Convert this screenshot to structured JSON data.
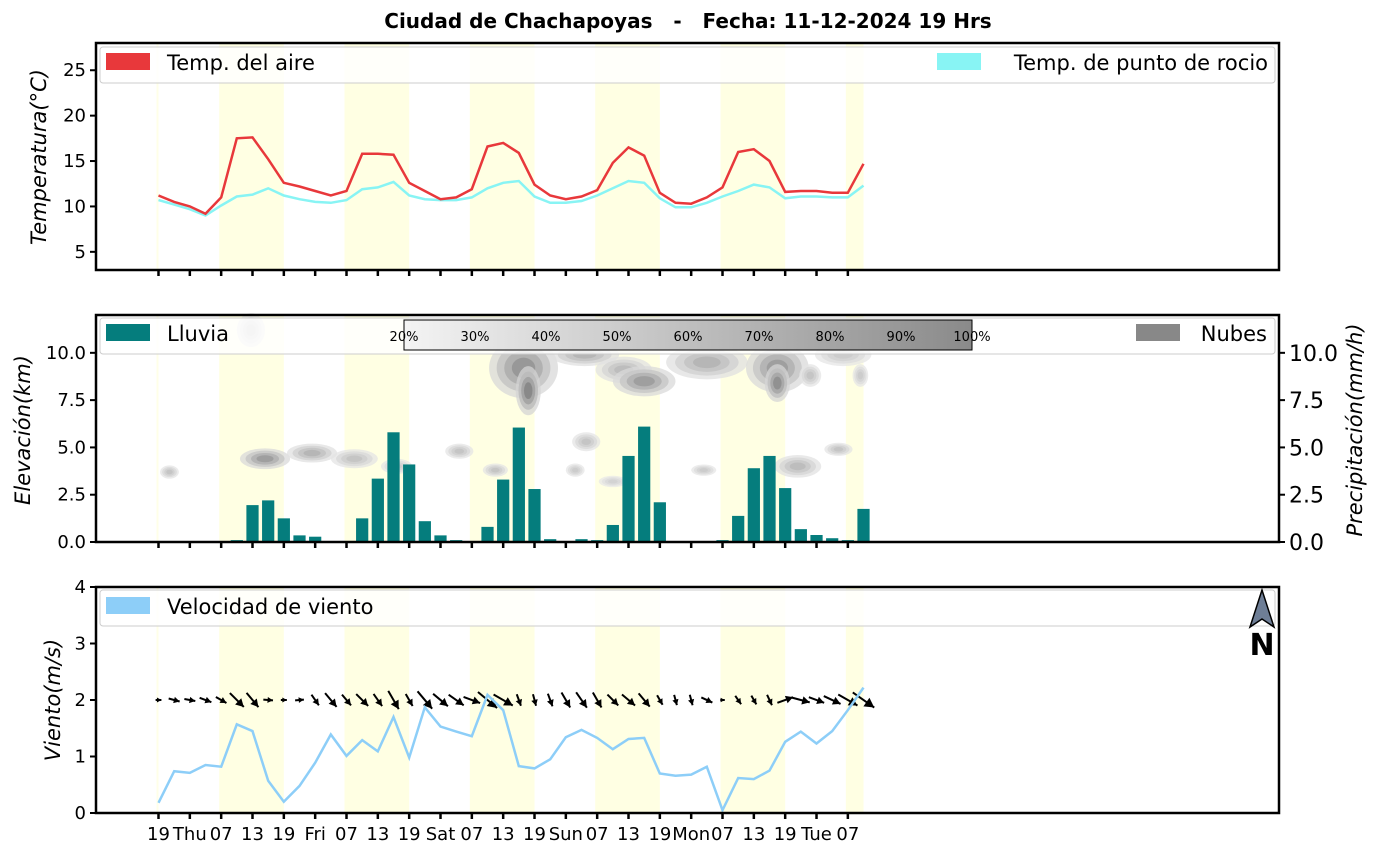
{
  "title": "Ciudad de Chachapoyas   -   Fecha: 11-12-2024 19 Hrs",
  "x_tick_labels": [
    "19",
    "Thu",
    "07",
    "13",
    "19",
    "Fri",
    "07",
    "13",
    "19",
    "Sat",
    "07",
    "13",
    "19",
    "Sun",
    "07",
    "13",
    "19",
    "Mon",
    "07",
    "13",
    "19",
    "Tue",
    "07"
  ],
  "chart_data": [
    {
      "type": "line",
      "name": "temperature",
      "ylabel": "Temperatura(°C)",
      "ylim": [
        3,
        28
      ],
      "yticks": [
        5,
        10,
        15,
        20,
        25
      ],
      "legend": {
        "left": "Temp. del aire",
        "right": "Temp. de punto de rocio"
      },
      "x_step_hours": 3,
      "series": [
        {
          "name": "Temp. del aire",
          "color": "#e8383b",
          "values": [
            11.2,
            10.5,
            10.0,
            9.2,
            11.0,
            17.5,
            17.6,
            15.2,
            12.6,
            12.2,
            11.7,
            11.2,
            11.7,
            15.8,
            15.8,
            15.7,
            12.6,
            11.7,
            10.8,
            11.0,
            11.9,
            16.6,
            17.0,
            15.9,
            12.4,
            11.2,
            10.8,
            11.1,
            11.8,
            14.8,
            16.5,
            15.6,
            11.5,
            10.4,
            10.3,
            11.0,
            12.1,
            16.0,
            16.3,
            15.0,
            11.6,
            11.7,
            11.7,
            11.5,
            11.5,
            14.7
          ]
        },
        {
          "name": "Temp. de punto de rocio",
          "color": "#88f4f4",
          "values": [
            10.7,
            10.2,
            9.7,
            9.0,
            10.1,
            11.1,
            11.3,
            12.0,
            11.2,
            10.8,
            10.5,
            10.4,
            10.7,
            11.9,
            12.1,
            12.7,
            11.2,
            10.8,
            10.7,
            10.7,
            11.0,
            12.0,
            12.6,
            12.8,
            11.1,
            10.4,
            10.4,
            10.6,
            11.2,
            12.0,
            12.8,
            12.6,
            10.9,
            9.9,
            9.9,
            10.4,
            11.1,
            11.7,
            12.4,
            12.1,
            10.9,
            11.1,
            11.1,
            11.0,
            11.0,
            12.3
          ]
        }
      ]
    },
    {
      "type": "bar",
      "name": "precipitation_clouds",
      "ylabel_left": "Elevación(km)",
      "ylabel_right": "Precipitación(mm/h)",
      "ylim": [
        0,
        12
      ],
      "yticks_left": [
        "0.0",
        "2.5",
        "5.0",
        "7.5",
        "10.0"
      ],
      "yticks_right": [
        "0.0",
        "2.5",
        "5.0",
        "7.5",
        "10.0"
      ],
      "legend": {
        "left": "Lluvia",
        "right": "Nubes"
      },
      "colorbar_labels": [
        "20%",
        "30%",
        "40%",
        "50%",
        "60%",
        "70%",
        "80%",
        "90%",
        "100%"
      ],
      "rain_color": "#057d7d",
      "x_step_hours": 3,
      "values": [
        0.02,
        0.05,
        0.05,
        0.05,
        0.05,
        0.1,
        1.95,
        2.2,
        1.25,
        0.35,
        0.28,
        0.05,
        0.05,
        1.25,
        3.35,
        5.8,
        4.1,
        1.1,
        0.35,
        0.1,
        0.05,
        0.8,
        3.3,
        6.05,
        2.8,
        0.15,
        0.05,
        0.15,
        0.1,
        0.9,
        4.55,
        6.1,
        2.1,
        0.02,
        0.02,
        0.02,
        0.1,
        1.38,
        3.9,
        4.55,
        2.85,
        0.68,
        0.37,
        0.2,
        0.1,
        1.75
      ],
      "clouds": [
        {
          "x": 0.7,
          "y": 3.7,
          "rx": 0.6,
          "ry": 0.35,
          "cover": 0.3
        },
        {
          "x": 5.9,
          "y": 11.2,
          "rx": 0.9,
          "ry": 0.9,
          "cover": 0.25
        },
        {
          "x": 6.8,
          "y": 4.4,
          "rx": 1.6,
          "ry": 0.55,
          "cover": 0.55
        },
        {
          "x": 9.8,
          "y": 4.7,
          "rx": 1.6,
          "ry": 0.5,
          "cover": 0.4
        },
        {
          "x": 12.5,
          "y": 4.4,
          "rx": 1.5,
          "ry": 0.5,
          "cover": 0.3
        },
        {
          "x": 15.2,
          "y": 4.0,
          "rx": 1.0,
          "ry": 0.4,
          "cover": 0.25
        },
        {
          "x": 19.2,
          "y": 4.8,
          "rx": 0.9,
          "ry": 0.4,
          "cover": 0.3
        },
        {
          "x": 21.5,
          "y": 3.8,
          "rx": 0.8,
          "ry": 0.35,
          "cover": 0.3
        },
        {
          "x": 23.3,
          "y": 9.2,
          "rx": 2.2,
          "ry": 1.6,
          "cover": 0.6
        },
        {
          "x": 23.6,
          "y": 8.0,
          "rx": 0.8,
          "ry": 1.3,
          "cover": 0.7
        },
        {
          "x": 27.2,
          "y": 9.9,
          "rx": 2.2,
          "ry": 0.6,
          "cover": 0.4
        },
        {
          "x": 29.7,
          "y": 9.1,
          "rx": 1.8,
          "ry": 0.7,
          "cover": 0.35
        },
        {
          "x": 31.0,
          "y": 8.5,
          "rx": 2.0,
          "ry": 0.8,
          "cover": 0.55
        },
        {
          "x": 27.3,
          "y": 5.3,
          "rx": 0.9,
          "ry": 0.5,
          "cover": 0.3
        },
        {
          "x": 26.6,
          "y": 3.8,
          "rx": 0.6,
          "ry": 0.35,
          "cover": 0.25
        },
        {
          "x": 29.0,
          "y": 3.2,
          "rx": 0.9,
          "ry": 0.3,
          "cover": 0.2
        },
        {
          "x": 35.0,
          "y": 9.5,
          "rx": 2.6,
          "ry": 0.9,
          "cover": 0.4
        },
        {
          "x": 34.8,
          "y": 3.8,
          "rx": 0.8,
          "ry": 0.3,
          "cover": 0.25
        },
        {
          "x": 39.5,
          "y": 9.2,
          "rx": 2.0,
          "ry": 1.3,
          "cover": 0.55
        },
        {
          "x": 39.5,
          "y": 8.4,
          "rx": 0.8,
          "ry": 1.0,
          "cover": 0.65
        },
        {
          "x": 41.6,
          "y": 8.8,
          "rx": 0.7,
          "ry": 0.6,
          "cover": 0.3
        },
        {
          "x": 40.8,
          "y": 4.0,
          "rx": 1.5,
          "ry": 0.6,
          "cover": 0.35
        },
        {
          "x": 43.4,
          "y": 4.9,
          "rx": 0.9,
          "ry": 0.35,
          "cover": 0.3
        },
        {
          "x": 44.8,
          "y": 8.8,
          "rx": 0.5,
          "ry": 0.6,
          "cover": 0.25
        },
        {
          "x": 43.7,
          "y": 9.9,
          "rx": 1.8,
          "ry": 0.6,
          "cover": 0.25
        }
      ]
    },
    {
      "type": "line",
      "name": "wind",
      "ylabel": "Viento(m/s)",
      "ylim": [
        0,
        4
      ],
      "yticks": [
        0,
        1,
        2,
        3,
        4
      ],
      "legend": {
        "left": "Velocidad de viento"
      },
      "north_label": "N",
      "color": "#8dcef8",
      "x_step_hours": 3,
      "values": [
        0.18,
        0.74,
        0.71,
        0.85,
        0.82,
        1.57,
        1.45,
        0.57,
        0.2,
        0.48,
        0.89,
        1.39,
        1.01,
        1.29,
        1.09,
        1.7,
        0.98,
        1.87,
        1.53,
        1.44,
        1.36,
        2.09,
        1.82,
        0.83,
        0.79,
        0.95,
        1.34,
        1.47,
        1.33,
        1.13,
        1.31,
        1.33,
        0.7,
        0.66,
        0.68,
        0.82,
        0.05,
        0.62,
        0.6,
        0.75,
        1.26,
        1.44,
        1.23,
        1.45,
        1.82,
        2.22
      ],
      "arrow_dir_deg": [
        90,
        105,
        100,
        110,
        120,
        135,
        140,
        95,
        90,
        85,
        145,
        140,
        140,
        135,
        145,
        150,
        150,
        140,
        130,
        125,
        110,
        130,
        120,
        160,
        165,
        160,
        150,
        145,
        150,
        135,
        130,
        140,
        150,
        165,
        165,
        115,
        90,
        145,
        150,
        155,
        70,
        105,
        110,
        115,
        120,
        125
      ]
    }
  ]
}
